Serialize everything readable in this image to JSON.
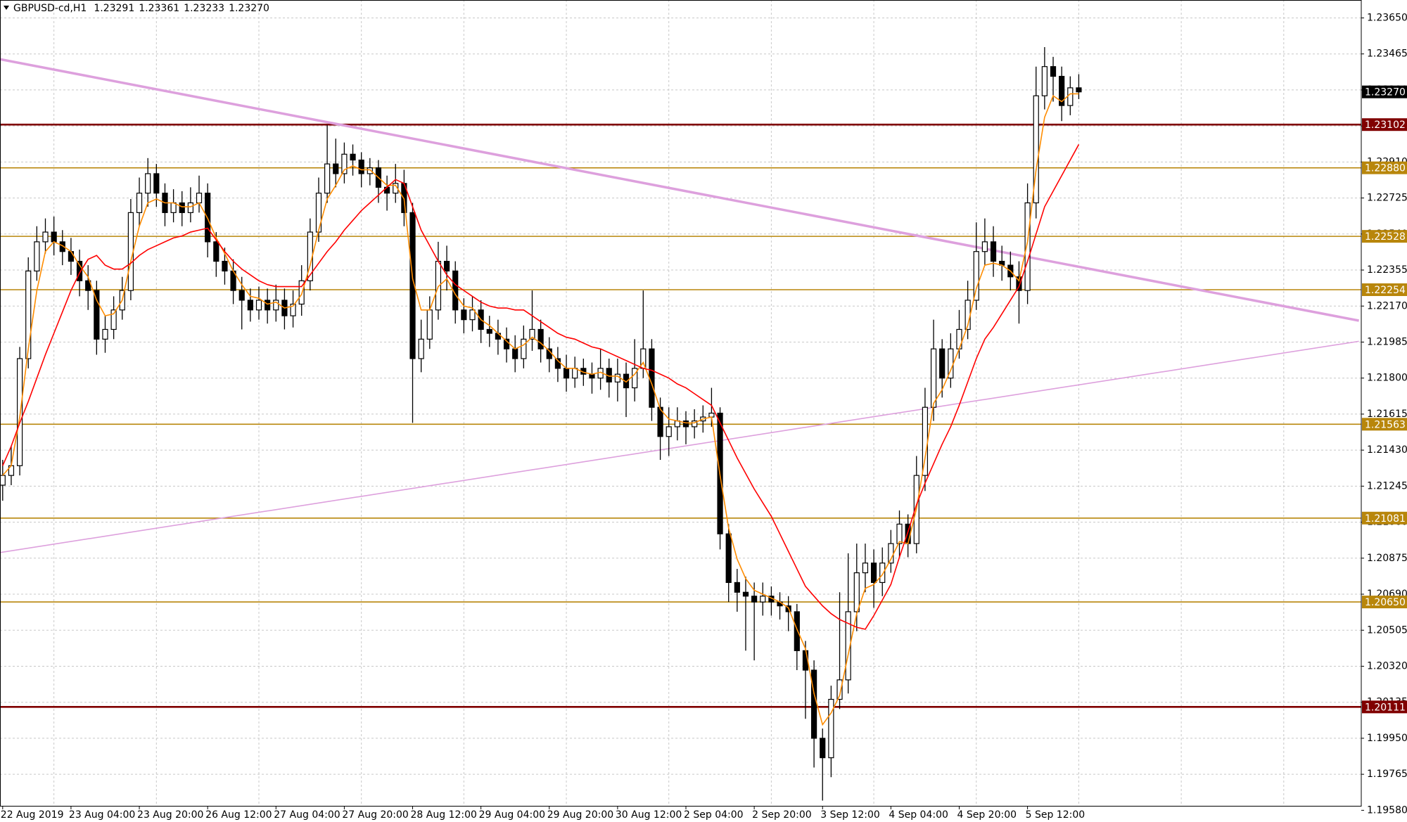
{
  "chart_data": {
    "type": "candlestick",
    "title": "GBPUSD-cd,H1",
    "ohlc_labels": [
      "1.23291",
      "1.23361",
      "1.23233",
      "1.23270"
    ],
    "categories": [
      "22 Aug 2019",
      null,
      null,
      null,
      null,
      null,
      null,
      null,
      "23 Aug 04:00",
      null,
      null,
      null,
      null,
      null,
      null,
      null,
      "23 Aug 20:00",
      null,
      null,
      null,
      null,
      null,
      null,
      null,
      "26 Aug 12:00",
      null,
      null,
      null,
      null,
      null,
      null,
      null,
      "27 Aug 04:00",
      null,
      null,
      null,
      null,
      null,
      null,
      null,
      "27 Aug 20:00",
      null,
      null,
      null,
      null,
      null,
      null,
      null,
      "28 Aug 12:00",
      null,
      null,
      null,
      null,
      null,
      null,
      null,
      "29 Aug 04:00",
      null,
      null,
      null,
      null,
      null,
      null,
      null,
      "29 Aug 20:00",
      null,
      null,
      null,
      null,
      null,
      null,
      null,
      "30 Aug 12:00",
      null,
      null,
      null,
      null,
      null,
      null,
      null,
      "2 Sep 04:00",
      null,
      null,
      null,
      null,
      null,
      null,
      null,
      "2 Sep 20:00",
      null,
      null,
      null,
      null,
      null,
      null,
      null,
      "3 Sep 12:00",
      null,
      null,
      null,
      null,
      null,
      null,
      null,
      "4 Sep 04:00",
      null,
      null,
      null,
      null,
      null,
      null,
      null,
      "4 Sep 20:00",
      null,
      null,
      null,
      null,
      null,
      null,
      null,
      "5 Sep 12:00",
      null,
      null,
      null,
      null,
      null,
      null
    ],
    "open": [
      1.2125,
      1.213,
      1.2135,
      1.219,
      1.2235,
      1.225,
      1.2255,
      1.225,
      1.2245,
      1.224,
      1.223,
      1.2225,
      1.22,
      1.2205,
      1.2215,
      1.2225,
      1.2265,
      1.2275,
      1.2285,
      1.2275,
      1.2265,
      1.227,
      1.2265,
      1.227,
      1.2275,
      1.225,
      1.224,
      1.2235,
      1.2225,
      1.222,
      1.2215,
      1.222,
      1.2215,
      1.222,
      1.2212,
      1.2218,
      1.223,
      1.2255,
      1.2275,
      1.229,
      1.2285,
      1.2295,
      1.2292,
      1.2285,
      1.2288,
      1.2278,
      1.2275,
      1.228,
      1.2265,
      1.219,
      1.22,
      1.2215,
      1.224,
      1.2235,
      1.2215,
      1.221,
      1.2215,
      1.2205,
      1.2203,
      1.22,
      1.2195,
      1.219,
      1.22,
      1.2205,
      1.2195,
      1.219,
      1.2185,
      1.218,
      1.2185,
      1.2182,
      1.218,
      1.2185,
      1.2178,
      1.2182,
      1.2175,
      1.2185,
      1.2195,
      1.2165,
      1.215,
      1.2155,
      1.2158,
      1.2155,
      1.2158,
      1.216,
      1.2162,
      1.21,
      1.2075,
      1.207,
      1.2068,
      1.2065,
      1.2068,
      1.2065,
      1.2063,
      1.206,
      1.204,
      1.203,
      1.1995,
      1.1985,
      1.2015,
      1.2025,
      1.206,
      1.208,
      1.2085,
      1.2075,
      1.2085,
      1.2095,
      1.2105,
      1.2095,
      1.213,
      1.2165,
      1.2195,
      1.218,
      1.2195,
      1.2205,
      1.222,
      1.2245,
      1.225,
      1.224,
      1.2238,
      1.2232,
      1.2225,
      1.227,
      1.2325,
      1.234,
      1.2335,
      1.232,
      1.23291
    ],
    "high": [
      1.2138,
      1.2145,
      1.2196,
      1.2242,
      1.2258,
      1.2262,
      1.2263,
      1.2256,
      1.2252,
      1.2246,
      1.2238,
      1.223,
      1.2212,
      1.2222,
      1.2232,
      1.2272,
      1.2283,
      1.2293,
      1.229,
      1.228,
      1.2277,
      1.2276,
      1.2278,
      1.2284,
      1.228,
      1.2255,
      1.2247,
      1.2241,
      1.2232,
      1.2226,
      1.2227,
      1.2226,
      1.2228,
      1.2226,
      1.2225,
      1.2238,
      1.2262,
      1.2283,
      1.231,
      1.2303,
      1.2301,
      1.23,
      1.2296,
      1.2293,
      1.2292,
      1.2284,
      1.229,
      1.2287,
      1.227,
      1.221,
      1.2222,
      1.225,
      1.2248,
      1.224,
      1.2221,
      1.2222,
      1.222,
      1.2212,
      1.221,
      1.2206,
      1.2202,
      1.2207,
      1.2225,
      1.221,
      1.2201,
      1.2196,
      1.2192,
      1.2191,
      1.219,
      1.2188,
      1.2195,
      1.219,
      1.219,
      1.2188,
      1.22,
      1.2225,
      1.22,
      1.217,
      1.2165,
      1.2165,
      1.2163,
      1.2164,
      1.2166,
      1.2175,
      1.2165,
      1.2105,
      1.2082,
      1.2078,
      1.2075,
      1.2075,
      1.2073,
      1.207,
      1.2068,
      1.2064,
      1.2045,
      1.2035,
      1.2,
      1.2022,
      1.207,
      1.209,
      1.2095,
      1.2095,
      1.2092,
      1.2093,
      1.2102,
      1.2112,
      1.211,
      1.214,
      1.2175,
      1.221,
      1.22,
      1.2203,
      1.2215,
      1.223,
      1.226,
      1.2262,
      1.2258,
      1.2248,
      1.2245,
      1.224,
      1.228,
      1.234,
      1.235,
      1.2345,
      1.234,
      1.2335,
      1.23361
    ],
    "low": [
      1.2117,
      1.2125,
      1.213,
      1.2185,
      1.223,
      1.2244,
      1.2243,
      1.2238,
      1.2233,
      1.2222,
      1.2215,
      1.2192,
      1.2193,
      1.22,
      1.221,
      1.222,
      1.2258,
      1.2268,
      1.2268,
      1.2258,
      1.226,
      1.2258,
      1.226,
      1.2265,
      1.2242,
      1.2232,
      1.2228,
      1.2218,
      1.2205,
      1.2209,
      1.221,
      1.2208,
      1.2209,
      1.2205,
      1.2206,
      1.2212,
      1.2225,
      1.225,
      1.227,
      1.2278,
      1.228,
      1.2284,
      1.2278,
      1.2279,
      1.227,
      1.2266,
      1.227,
      1.2258,
      1.2157,
      1.2183,
      1.2195,
      1.221,
      1.2225,
      1.2208,
      1.2203,
      1.2204,
      1.2198,
      1.2196,
      1.2192,
      1.2188,
      1.2183,
      1.2185,
      1.2194,
      1.2188,
      1.2183,
      1.2178,
      1.2173,
      1.2175,
      1.2176,
      1.2172,
      1.2174,
      1.217,
      1.2168,
      1.216,
      1.2168,
      1.218,
      1.2158,
      1.2138,
      1.214,
      1.2148,
      1.2146,
      1.2149,
      1.2152,
      1.2155,
      1.2092,
      1.2065,
      1.206,
      1.204,
      1.2035,
      1.2058,
      1.2058,
      1.2056,
      1.205,
      1.203,
      1.2005,
      1.198,
      1.1963,
      1.1975,
      1.201,
      1.2018,
      1.205,
      1.207,
      1.2062,
      1.2068,
      1.208,
      1.2088,
      1.2088,
      1.209,
      1.2122,
      1.2158,
      1.217,
      1.2175,
      1.219,
      1.22,
      1.2215,
      1.2238,
      1.2232,
      1.223,
      1.2225,
      1.2208,
      1.2218,
      1.2262,
      1.2318,
      1.2322,
      1.2312,
      1.2315,
      1.23233
    ],
    "close": [
      1.213,
      1.2135,
      1.219,
      1.2235,
      1.225,
      1.2255,
      1.225,
      1.2245,
      1.224,
      1.223,
      1.2225,
      1.22,
      1.2205,
      1.2215,
      1.2225,
      1.2265,
      1.2275,
      1.2285,
      1.2275,
      1.2265,
      1.227,
      1.2265,
      1.227,
      1.2275,
      1.225,
      1.224,
      1.2235,
      1.2225,
      1.222,
      1.2215,
      1.222,
      1.2215,
      1.222,
      1.2212,
      1.2218,
      1.223,
      1.2255,
      1.2275,
      1.229,
      1.2285,
      1.2295,
      1.2292,
      1.2285,
      1.2288,
      1.2278,
      1.2275,
      1.228,
      1.2265,
      1.219,
      1.22,
      1.2215,
      1.224,
      1.2235,
      1.2215,
      1.221,
      1.2215,
      1.2205,
      1.2203,
      1.22,
      1.2195,
      1.219,
      1.22,
      1.2205,
      1.2195,
      1.219,
      1.2185,
      1.218,
      1.2185,
      1.2182,
      1.218,
      1.2185,
      1.2178,
      1.2182,
      1.2175,
      1.2185,
      1.2195,
      1.2165,
      1.215,
      1.2155,
      1.2158,
      1.2155,
      1.2158,
      1.216,
      1.2162,
      1.21,
      1.2075,
      1.207,
      1.2068,
      1.2065,
      1.2068,
      1.2065,
      1.2063,
      1.206,
      1.204,
      1.203,
      1.1995,
      1.1985,
      1.2015,
      1.2025,
      1.206,
      1.208,
      1.2085,
      1.2075,
      1.2085,
      1.2095,
      1.2105,
      1.2095,
      1.213,
      1.2165,
      1.2195,
      1.218,
      1.2195,
      1.2205,
      1.222,
      1.2245,
      1.225,
      1.224,
      1.2238,
      1.2232,
      1.2225,
      1.227,
      1.2325,
      1.234,
      1.2335,
      1.232,
      1.23291,
      1.2327
    ],
    "up_color": "#ffffff",
    "down_color": "#000000",
    "moving_averages": [
      {
        "color": "#ff8c00",
        "values": [
          1.213,
          1.2135,
          1.216,
          1.2195,
          1.2225,
          1.2245,
          1.225,
          1.2248,
          1.2245,
          1.2238,
          1.2232,
          1.222,
          1.2212,
          1.2213,
          1.222,
          1.224,
          1.2258,
          1.227,
          1.2272,
          1.227,
          1.227,
          1.2268,
          1.2268,
          1.227,
          1.2262,
          1.2252,
          1.2244,
          1.2235,
          1.2228,
          1.2222,
          1.2221,
          1.2218,
          1.2219,
          1.2216,
          1.2217,
          1.2223,
          1.2238,
          1.2256,
          1.2272,
          1.2279,
          1.2287,
          1.2289,
          1.2287,
          1.2287,
          1.2283,
          1.2279,
          1.2279,
          1.2272,
          1.2231,
          1.2215,
          1.2215,
          1.2227,
          1.2231,
          1.2223,
          1.2217,
          1.2216,
          1.221,
          1.2207,
          1.2203,
          1.2199,
          1.2195,
          1.2197,
          1.2201,
          1.2198,
          1.2194,
          1.2189,
          1.2185,
          1.2185,
          1.2183,
          1.2182,
          1.2183,
          1.2181,
          1.2181,
          1.2178,
          1.2182,
          1.2188,
          1.2177,
          1.2164,
          1.2159,
          1.2158,
          1.2157,
          1.2157,
          1.2159,
          1.216,
          1.213,
          1.2103,
          1.2087,
          1.2077,
          1.2071,
          1.2069,
          1.2067,
          1.2065,
          1.2062,
          1.2051,
          1.2041,
          1.2018,
          1.2002,
          1.2008,
          1.2017,
          1.2038,
          1.2059,
          1.2072,
          1.2074,
          1.2079,
          1.2087,
          1.2096,
          1.2095,
          1.2113,
          1.2139,
          1.2167,
          1.2174,
          1.2184,
          1.2195,
          1.2207,
          1.2226,
          1.2238,
          1.2239,
          1.2238,
          1.2235,
          1.223,
          1.225,
          1.2287,
          1.2314,
          1.2325,
          1.2322,
          1.2326,
          1.2326
        ]
      },
      {
        "color": "#ff0000",
        "values": [
          1.2135,
          1.2145,
          1.2157,
          1.2168,
          1.218,
          1.2192,
          1.2203,
          1.2214,
          1.2225,
          1.2234,
          1.2241,
          1.2243,
          1.2238,
          1.2236,
          1.2236,
          1.2239,
          1.2243,
          1.2246,
          1.2248,
          1.225,
          1.2252,
          1.2253,
          1.2255,
          1.2256,
          1.2257,
          1.2251,
          1.2245,
          1.224,
          1.2236,
          1.2233,
          1.223,
          1.2228,
          1.2227,
          1.2227,
          1.2227,
          1.2227,
          1.2233,
          1.2239,
          1.2245,
          1.225,
          1.2256,
          1.2261,
          1.2266,
          1.227,
          1.2274,
          1.2278,
          1.2282,
          1.228,
          1.2268,
          1.2256,
          1.2248,
          1.224,
          1.2233,
          1.2228,
          1.2225,
          1.2222,
          1.2219,
          1.2217,
          1.2216,
          1.2216,
          1.2215,
          1.2215,
          1.2212,
          1.2209,
          1.2206,
          1.2203,
          1.2201,
          1.22,
          1.2198,
          1.2196,
          1.2195,
          1.2193,
          1.2191,
          1.2189,
          1.2187,
          1.2185,
          1.2184,
          1.2182,
          1.218,
          1.2177,
          1.2175,
          1.2172,
          1.2169,
          1.2166,
          1.2157,
          1.2148,
          1.2139,
          1.2131,
          1.2123,
          1.2116,
          1.2109,
          1.21,
          1.2091,
          1.2082,
          1.2073,
          1.2068,
          1.2063,
          1.2059,
          1.2056,
          1.2054,
          1.2052,
          1.2051,
          1.2058,
          1.2066,
          1.2074,
          1.2088,
          1.2101,
          1.2115,
          1.2126,
          1.2136,
          1.2146,
          1.2155,
          1.2166,
          1.2178,
          1.219,
          1.22,
          1.2206,
          1.2213,
          1.222,
          1.2227,
          1.224,
          1.2254,
          1.2268,
          1.2276,
          1.2284,
          1.2292,
          1.23
        ]
      }
    ],
    "levels": [
      {
        "value": 1.23102,
        "label": "1.23102",
        "color": "#800000"
      },
      {
        "value": 1.2288,
        "label": "1.22880",
        "color": "#b8860b"
      },
      {
        "value": 1.22528,
        "label": "1.22528",
        "color": "#b8860b"
      },
      {
        "value": 1.22254,
        "label": "1.22254",
        "color": "#b8860b"
      },
      {
        "value": 1.21563,
        "label": "1.21563",
        "color": "#b8860b"
      },
      {
        "value": 1.21081,
        "label": "1.21081",
        "color": "#b8860b"
      },
      {
        "value": 1.2065,
        "label": "1.20650",
        "color": "#b8860b"
      },
      {
        "value": 1.20111,
        "label": "1.20111",
        "color": "#800000"
      }
    ],
    "trendlines": [
      {
        "x": [
          -0.32,
          158.8
        ],
        "y": [
          1.23438,
          1.22095
        ],
        "color": "#dda0dd"
      },
      {
        "x": [
          -0.32,
          158.8
        ],
        "y": [
          1.20904,
          1.21989
        ],
        "color": "#dda0dd"
      }
    ],
    "ylim": [
      1.19603,
      1.23742
    ],
    "yticks": [
      {
        "value": 1.2365,
        "label": "1.23650"
      },
      {
        "value": 1.23465,
        "label": "1.23465"
      },
      {
        "value": 1.2328,
        "label": "1.23280"
      },
      {
        "value": 1.23095,
        "label": "1.23095"
      },
      {
        "value": 1.2291,
        "label": "1.22910"
      },
      {
        "value": 1.22725,
        "label": "1.22725"
      },
      {
        "value": 1.2254,
        "label": "1.22540"
      },
      {
        "value": 1.22355,
        "label": "1.22355"
      },
      {
        "value": 1.2217,
        "label": "1.22170"
      },
      {
        "value": 1.21985,
        "label": "1.21985"
      },
      {
        "value": 1.218,
        "label": "1.21800"
      },
      {
        "value": 1.21615,
        "label": "1.21615"
      },
      {
        "value": 1.2143,
        "label": "1.21430"
      },
      {
        "value": 1.21245,
        "label": "1.21245"
      },
      {
        "value": 1.2106,
        "label": "1.21060"
      },
      {
        "value": 1.20875,
        "label": "1.20875"
      },
      {
        "value": 1.2069,
        "label": "1.20690"
      },
      {
        "value": 1.20505,
        "label": "1.20505"
      },
      {
        "value": 1.2032,
        "label": "1.20320"
      },
      {
        "value": 1.20135,
        "label": "1.20135"
      },
      {
        "value": 1.1995,
        "label": "1.19950"
      },
      {
        "value": 1.19765,
        "label": "1.19765"
      },
      {
        "value": 1.1958,
        "label": "1.19580"
      }
    ],
    "grid": true
  }
}
